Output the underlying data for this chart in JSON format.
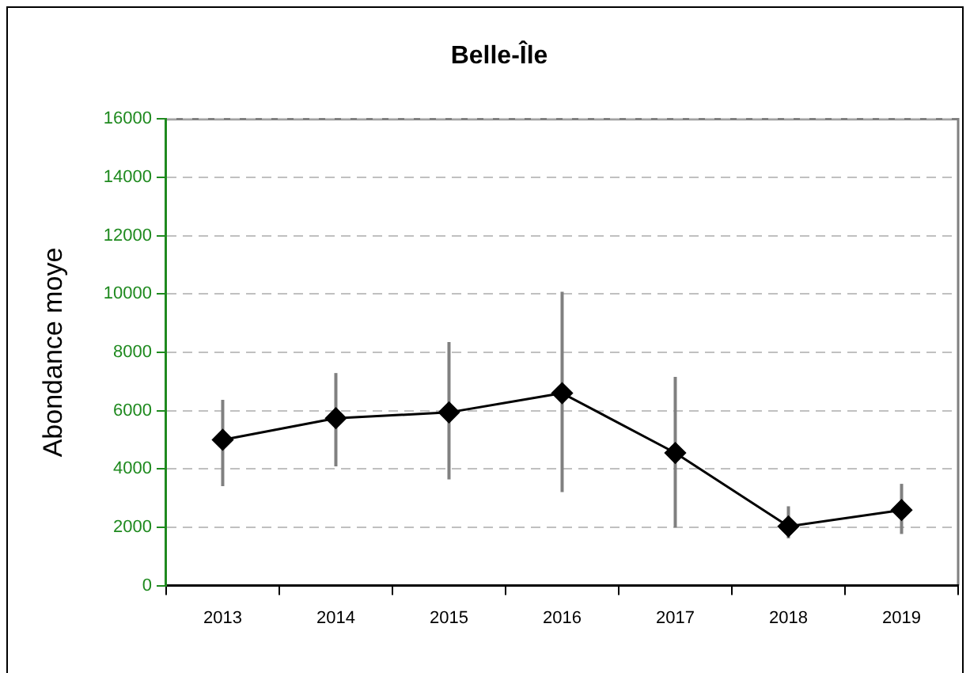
{
  "chart_data": {
    "type": "line",
    "title": "Belle-Île",
    "ylabel": "Abondance moye",
    "categories": [
      "2013",
      "2014",
      "2015",
      "2016",
      "2017",
      "2018",
      "2019"
    ],
    "series": [
      {
        "color": "#000000",
        "values": [
          5000,
          5740,
          5940,
          6600,
          4550,
          2030,
          2590
        ],
        "errors": [
          [
            3410,
            6370
          ],
          [
            4090,
            7290
          ],
          [
            3640,
            8350
          ],
          [
            3210,
            10080
          ],
          [
            1990,
            7160
          ],
          [
            1620,
            2720
          ],
          [
            1770,
            3490
          ]
        ]
      }
    ],
    "ylim": [
      0,
      16000
    ],
    "yticks": [
      0,
      2000,
      4000,
      6000,
      8000,
      10000,
      12000,
      14000,
      16000
    ],
    "grid": "y",
    "legend": false,
    "marker": "diamond",
    "line_style": "solid"
  }
}
